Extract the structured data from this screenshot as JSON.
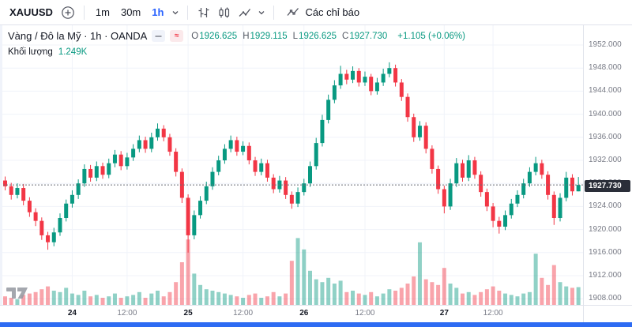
{
  "toolbar": {
    "symbol": "XAUUSD",
    "timeframes": [
      {
        "label": "1m",
        "active": false
      },
      {
        "label": "30m",
        "active": false
      },
      {
        "label": "1h",
        "active": true
      }
    ],
    "indicators_label": "Các chỉ báo"
  },
  "legend": {
    "title": "Vàng / Đô la Mỹ · 1h · OANDA",
    "approx_symbol": "≈",
    "ohlc": [
      {
        "k": "O",
        "v": "1926.625"
      },
      {
        "k": "H",
        "v": "1929.115"
      },
      {
        "k": "L",
        "v": "1926.625"
      },
      {
        "k": "C",
        "v": "1927.730"
      }
    ],
    "change": "+1.105 (+0.06%)",
    "volume_label": "Khối lượng",
    "volume_value": "1.249K"
  },
  "colors": {
    "accent": "#2962ff",
    "up": "#089981",
    "down": "#f23645",
    "grid": "#f0f3fa",
    "axis_text": "#787b86",
    "price_tag_bg": "#2a2e39",
    "bottom_bar": "#2d6bf3"
  },
  "chart_data": {
    "type": "candlestick",
    "symbol": "XAUUSD",
    "description": "Vàng / Đô la Mỹ",
    "timeframe": "1h",
    "exchange": "OANDA",
    "ylim": [
      1907,
      1955.4
    ],
    "anchor_price": 1952,
    "last_price": 1927.73,
    "last_price_label": "1927.730",
    "current_volume": 1.249,
    "legend_position": "top-left",
    "grid": true,
    "price_ticks": [
      {
        "label": "1952.000",
        "value": 1952
      },
      {
        "label": "1948.000",
        "value": 1948
      },
      {
        "label": "1944.000",
        "value": 1944
      },
      {
        "label": "1940.000",
        "value": 1940
      },
      {
        "label": "1936.000",
        "value": 1936
      },
      {
        "label": "1932.000",
        "value": 1932
      },
      {
        "label": "1928.000",
        "value": 1928
      },
      {
        "label": "1924.000",
        "value": 1924
      },
      {
        "label": "1920.000",
        "value": 1920
      },
      {
        "label": "1916.000",
        "value": 1916
      },
      {
        "label": "1912.000",
        "value": 1912
      },
      {
        "label": "1908.000",
        "value": 1908
      }
    ],
    "time_ticks": [
      {
        "index": 11,
        "label": "24",
        "kind": "day"
      },
      {
        "index": 20,
        "label": "12:00",
        "kind": "time"
      },
      {
        "index": 30,
        "label": "25",
        "kind": "day"
      },
      {
        "index": 39,
        "label": "12:00",
        "kind": "time"
      },
      {
        "index": 49,
        "label": "26",
        "kind": "day"
      },
      {
        "index": 59,
        "label": "12:00",
        "kind": "time"
      },
      {
        "index": 72,
        "label": "27",
        "kind": "day"
      },
      {
        "index": 80,
        "label": "12:00",
        "kind": "time"
      }
    ],
    "candles_format": [
      "open",
      "high",
      "low",
      "close",
      "volume_k"
    ],
    "candles": [
      [
        1928.5,
        1929.2,
        1926.8,
        1927.5,
        0.6
      ],
      [
        1927.5,
        1928.1,
        1925.2,
        1926.0,
        0.5
      ],
      [
        1926.0,
        1928.0,
        1925.4,
        1927.2,
        0.4
      ],
      [
        1927.2,
        1927.9,
        1924.2,
        1925.0,
        0.7
      ],
      [
        1925.0,
        1925.6,
        1922.2,
        1923.0,
        0.8
      ],
      [
        1923.0,
        1923.7,
        1920.6,
        1921.5,
        0.9
      ],
      [
        1921.5,
        1922.1,
        1918.2,
        1919.0,
        1.1
      ],
      [
        1919.0,
        1919.6,
        1916.5,
        1917.8,
        1.3
      ],
      [
        1917.8,
        1920.3,
        1917.1,
        1919.5,
        1.0
      ],
      [
        1919.5,
        1922.8,
        1918.9,
        1922.0,
        0.9
      ],
      [
        1922.0,
        1925.2,
        1921.4,
        1924.5,
        1.2
      ],
      [
        1924.5,
        1926.8,
        1923.8,
        1926.0,
        0.8
      ],
      [
        1926.0,
        1928.7,
        1925.3,
        1928.0,
        0.7
      ],
      [
        1928.0,
        1931.3,
        1927.4,
        1930.5,
        1.0
      ],
      [
        1930.5,
        1931.2,
        1928.3,
        1929.0,
        0.6
      ],
      [
        1929.0,
        1931.8,
        1928.4,
        1931.0,
        0.7
      ],
      [
        1931.0,
        1931.6,
        1928.8,
        1929.5,
        0.5
      ],
      [
        1929.5,
        1932.3,
        1928.9,
        1931.5,
        0.6
      ],
      [
        1931.5,
        1933.8,
        1930.8,
        1933.0,
        0.8
      ],
      [
        1933.0,
        1933.6,
        1930.3,
        1931.0,
        0.5
      ],
      [
        1931.0,
        1933.3,
        1930.4,
        1932.5,
        0.6
      ],
      [
        1932.5,
        1934.8,
        1931.9,
        1934.0,
        0.7
      ],
      [
        1934.0,
        1936.3,
        1933.4,
        1935.5,
        0.9
      ],
      [
        1935.5,
        1936.1,
        1933.3,
        1934.0,
        0.5
      ],
      [
        1934.0,
        1936.8,
        1933.4,
        1936.0,
        0.8
      ],
      [
        1936.0,
        1938.4,
        1935.4,
        1937.5,
        1.0
      ],
      [
        1937.5,
        1938.1,
        1935.3,
        1936.0,
        0.6
      ],
      [
        1936.0,
        1936.6,
        1932.8,
        1933.5,
        0.9
      ],
      [
        1933.5,
        1934.1,
        1929.2,
        1930.0,
        1.6
      ],
      [
        1930.0,
        1930.6,
        1924.6,
        1925.5,
        3.0
      ],
      [
        1925.5,
        1926.1,
        1916.0,
        1919.0,
        4.6
      ],
      [
        1919.0,
        1923.3,
        1918.3,
        1922.5,
        2.2
      ],
      [
        1922.5,
        1925.8,
        1921.9,
        1925.0,
        1.4
      ],
      [
        1925.0,
        1928.3,
        1924.4,
        1927.5,
        1.1
      ],
      [
        1927.5,
        1930.8,
        1926.9,
        1930.0,
        1.0
      ],
      [
        1930.0,
        1932.8,
        1929.4,
        1932.0,
        0.9
      ],
      [
        1932.0,
        1934.8,
        1931.4,
        1934.0,
        0.8
      ],
      [
        1934.0,
        1936.3,
        1933.4,
        1935.5,
        0.7
      ],
      [
        1935.5,
        1936.1,
        1932.8,
        1933.5,
        0.6
      ],
      [
        1933.5,
        1935.3,
        1932.9,
        1934.5,
        0.5
      ],
      [
        1934.5,
        1935.1,
        1931.3,
        1932.0,
        0.7
      ],
      [
        1932.0,
        1932.6,
        1929.3,
        1930.0,
        0.8
      ],
      [
        1930.0,
        1932.3,
        1929.4,
        1931.5,
        0.5
      ],
      [
        1931.5,
        1932.1,
        1928.3,
        1929.0,
        0.6
      ],
      [
        1929.0,
        1929.6,
        1926.3,
        1927.0,
        0.9
      ],
      [
        1927.0,
        1929.3,
        1926.4,
        1928.5,
        0.6
      ],
      [
        1928.5,
        1929.1,
        1925.3,
        1926.0,
        0.8
      ],
      [
        1926.0,
        1926.6,
        1923.6,
        1924.5,
        3.1
      ],
      [
        1924.5,
        1927.3,
        1923.9,
        1926.5,
        4.7
      ],
      [
        1926.5,
        1928.8,
        1925.9,
        1928.0,
        3.9
      ],
      [
        1928.0,
        1931.8,
        1927.4,
        1931.0,
        2.4
      ],
      [
        1931.0,
        1935.9,
        1930.4,
        1935.0,
        1.8
      ],
      [
        1935.0,
        1939.9,
        1934.4,
        1939.0,
        1.6
      ],
      [
        1939.0,
        1943.4,
        1938.4,
        1942.5,
        1.9
      ],
      [
        1942.5,
        1945.9,
        1941.9,
        1945.0,
        1.5
      ],
      [
        1945.0,
        1948.4,
        1944.4,
        1947.0,
        1.7
      ],
      [
        1947.0,
        1947.7,
        1945.2,
        1946.0,
        0.9
      ],
      [
        1946.0,
        1948.3,
        1945.4,
        1947.5,
        1.0
      ],
      [
        1947.5,
        1948.0,
        1944.8,
        1945.5,
        0.8
      ],
      [
        1945.5,
        1947.4,
        1944.9,
        1946.5,
        0.7
      ],
      [
        1946.5,
        1947.0,
        1943.3,
        1944.0,
        0.9
      ],
      [
        1944.0,
        1946.3,
        1943.4,
        1945.5,
        0.6
      ],
      [
        1945.5,
        1947.9,
        1944.9,
        1947.0,
        0.8
      ],
      [
        1947.0,
        1949.0,
        1946.4,
        1948.0,
        1.1
      ],
      [
        1948.0,
        1948.6,
        1944.8,
        1945.5,
        1.0
      ],
      [
        1945.5,
        1946.1,
        1942.3,
        1943.0,
        1.2
      ],
      [
        1943.0,
        1943.6,
        1938.7,
        1939.5,
        1.5
      ],
      [
        1939.5,
        1940.1,
        1935.2,
        1936.0,
        2.0
      ],
      [
        1936.0,
        1938.8,
        1935.4,
        1938.0,
        4.4
      ],
      [
        1938.0,
        1938.6,
        1933.2,
        1934.0,
        1.8
      ],
      [
        1934.0,
        1934.6,
        1929.7,
        1930.5,
        1.6
      ],
      [
        1930.5,
        1931.1,
        1926.2,
        1927.0,
        1.4
      ],
      [
        1927.0,
        1927.6,
        1922.8,
        1924.0,
        2.6
      ],
      [
        1924.0,
        1928.8,
        1923.4,
        1928.0,
        1.5
      ],
      [
        1928.0,
        1932.4,
        1927.4,
        1931.5,
        1.2
      ],
      [
        1931.5,
        1932.1,
        1928.3,
        1929.0,
        0.8
      ],
      [
        1929.0,
        1932.9,
        1928.4,
        1932.0,
        0.9
      ],
      [
        1932.0,
        1932.6,
        1928.8,
        1929.5,
        0.7
      ],
      [
        1929.5,
        1930.1,
        1925.7,
        1926.5,
        0.9
      ],
      [
        1926.5,
        1927.1,
        1923.2,
        1924.0,
        1.1
      ],
      [
        1924.0,
        1924.6,
        1920.4,
        1921.5,
        1.3
      ],
      [
        1921.5,
        1922.2,
        1919.3,
        1920.5,
        1.0
      ],
      [
        1920.5,
        1923.3,
        1919.9,
        1922.5,
        0.8
      ],
      [
        1922.5,
        1925.3,
        1921.9,
        1924.5,
        0.7
      ],
      [
        1924.5,
        1926.8,
        1923.9,
        1926.0,
        0.6
      ],
      [
        1926.0,
        1928.8,
        1925.4,
        1928.0,
        0.8
      ],
      [
        1928.0,
        1930.8,
        1927.4,
        1930.0,
        0.9
      ],
      [
        1930.0,
        1932.6,
        1929.4,
        1931.5,
        3.6
      ],
      [
        1931.5,
        1932.1,
        1928.8,
        1929.5,
        1.9
      ],
      [
        1929.5,
        1930.1,
        1925.2,
        1926.0,
        1.4
      ],
      [
        1926.0,
        1926.6,
        1920.8,
        1922.0,
        2.8
      ],
      [
        1922.0,
        1926.3,
        1921.4,
        1925.5,
        1.6
      ],
      [
        1925.5,
        1930.0,
        1924.9,
        1929.0,
        1.3
      ],
      [
        1929.0,
        1929.6,
        1925.9,
        1926.625,
        1.2
      ],
      [
        1926.625,
        1929.115,
        1926.625,
        1927.73,
        1.249
      ]
    ],
    "colors": {
      "up": "#089981",
      "down": "#f23645",
      "vol_up": "rgba(8,153,129,0.45)",
      "vol_down": "rgba(242,54,69,0.45)",
      "grid": "#f0f3fa",
      "last_price_line": "#6a6d78"
    }
  }
}
